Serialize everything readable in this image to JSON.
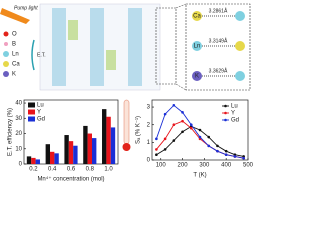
{
  "structure": {
    "legend": [
      "O",
      "B",
      "Ln",
      "Ca",
      "K"
    ],
    "pump": "Pump light",
    "transfer": "E.T.",
    "distances": [
      "3.2861Å",
      "3.3149Å",
      "3.3629Å"
    ],
    "atoms": [
      "Ca",
      "Ln",
      "K"
    ]
  },
  "chart_data": [
    {
      "type": "bar",
      "ylabel": "E.T. efficiency (%)",
      "xlabel": "Mn⁴⁺ concentration (mol)",
      "categories": [
        "0.2",
        "0.4",
        "0.6",
        "0.8",
        "1.0"
      ],
      "series": [
        {
          "name": "Lu",
          "color": "#111111",
          "values": [
            5,
            13,
            19,
            25,
            36
          ]
        },
        {
          "name": "Y",
          "color": "#e8141c",
          "values": [
            4,
            8,
            15,
            20,
            31
          ]
        },
        {
          "name": "Gd",
          "color": "#1a2fd6",
          "values": [
            3,
            7,
            12,
            17,
            24
          ]
        }
      ],
      "ylim": [
        0,
        42
      ],
      "yticks": [
        0,
        10,
        20,
        30,
        40
      ]
    },
    {
      "type": "line",
      "ylabel": "Sₐ (% K⁻¹)",
      "xlabel": "T (K)",
      "x": [
        80,
        120,
        160,
        200,
        240,
        280,
        320,
        360,
        400,
        440,
        480
      ],
      "series": [
        {
          "name": "Lu",
          "color": "#111111",
          "values": [
            0.3,
            0.6,
            1.1,
            1.6,
            1.9,
            1.7,
            1.3,
            0.8,
            0.5,
            0.3,
            0.2
          ]
        },
        {
          "name": "Y",
          "color": "#e8141c",
          "values": [
            0.6,
            1.2,
            2.0,
            2.2,
            1.8,
            1.2,
            0.8,
            0.5,
            0.3,
            0.2,
            0.1
          ]
        },
        {
          "name": "Gd",
          "color": "#1a2fd6",
          "values": [
            1.2,
            2.6,
            3.1,
            2.7,
            2.0,
            1.3,
            0.8,
            0.5,
            0.3,
            0.2,
            0.1
          ]
        }
      ],
      "xlim": [
        60,
        500
      ],
      "xticks": [
        100,
        200,
        300,
        400,
        500
      ],
      "ylim": [
        0,
        3.4
      ],
      "yticks": [
        0,
        1,
        2,
        3
      ]
    }
  ]
}
